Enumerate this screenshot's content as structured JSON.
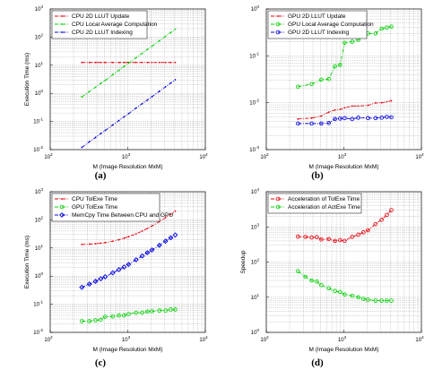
{
  "chart_data": [
    {
      "type": "line",
      "panel_label": "(a)",
      "xlabel": "M (Image Resolution MxM)",
      "ylabel": "Execution Time (ms)",
      "xscale": "log",
      "yscale": "log",
      "xlim": [
        100,
        10000
      ],
      "ylim": [
        0.01,
        1000
      ],
      "grid": true,
      "legend_position": "top-left",
      "x": [
        256,
        320,
        384,
        448,
        512,
        640,
        768,
        896,
        1024,
        1280,
        1536,
        1792,
        2048,
        2560,
        3072,
        3584,
        4096
      ],
      "series": [
        {
          "name": "CPU 2D LLUT Update",
          "color": "#e8000b",
          "marker": "point",
          "linestyle": "dash-dot",
          "values": [
            12.5,
            12.5,
            12.5,
            12.5,
            12.5,
            12.5,
            12.5,
            12.5,
            12.5,
            12.5,
            12.5,
            12.5,
            12.5,
            12.5,
            12.5,
            12.5,
            12.5
          ]
        },
        {
          "name": "CPU Local Average Computation",
          "color": "#00d000",
          "marker": "point",
          "linestyle": "dash-dot",
          "values": [
            0.75,
            1.15,
            1.65,
            2.25,
            2.9,
            4.6,
            6.6,
            9.0,
            11.8,
            18.5,
            26.6,
            36.3,
            47.5,
            74.0,
            107,
            145,
            190
          ]
        },
        {
          "name": "CPU 2D LLUT Indexing",
          "color": "#0000e0",
          "marker": "point",
          "linestyle": "dash-dot",
          "values": [
            0.012,
            0.019,
            0.027,
            0.037,
            0.048,
            0.075,
            0.108,
            0.147,
            0.19,
            0.3,
            0.43,
            0.58,
            0.76,
            1.19,
            1.71,
            2.33,
            3.05
          ]
        }
      ]
    },
    {
      "type": "line",
      "panel_label": "(b)",
      "xlabel": "M (Image Resolution MxM)",
      "ylabel": "",
      "xscale": "log",
      "yscale": "log",
      "xlim": [
        100,
        10000
      ],
      "ylim": [
        0.001,
        1
      ],
      "grid": true,
      "legend_position": "top-left",
      "x": [
        256,
        384,
        512,
        640,
        768,
        896,
        1024,
        1280,
        1536,
        2048,
        2560,
        3072,
        3584,
        4096
      ],
      "series": [
        {
          "name": "GPU 2D LLUT Update",
          "color": "#e8000b",
          "marker": "point",
          "linestyle": "dash-dot",
          "values": [
            0.0045,
            0.0047,
            0.0052,
            0.0063,
            0.007,
            0.0072,
            0.0078,
            0.0085,
            0.0085,
            0.0088,
            0.0099,
            0.01,
            0.0105,
            0.011
          ]
        },
        {
          "name": "GPU Local Average Computation",
          "color": "#00d000",
          "marker": "circle",
          "linestyle": "dash-dot",
          "values": [
            0.022,
            0.025,
            0.031,
            0.032,
            0.06,
            0.064,
            0.19,
            0.2,
            0.22,
            0.3,
            0.3,
            0.38,
            0.4,
            0.42
          ]
        },
        {
          "name": "GPU 2D LLUT Indexing",
          "color": "#0000e0",
          "marker": "circle",
          "linestyle": "dash-dot",
          "values": [
            0.0036,
            0.0036,
            0.0036,
            0.0037,
            0.0045,
            0.0046,
            0.0047,
            0.0045,
            0.0048,
            0.0047,
            0.0047,
            0.0048,
            0.005,
            0.0049
          ]
        }
      ]
    },
    {
      "type": "line",
      "panel_label": "(c)",
      "xlabel": "M (Image Resolution MxM)",
      "ylabel": "Execution Time (ms)",
      "xscale": "log",
      "yscale": "log",
      "xlim": [
        100,
        10000
      ],
      "ylim": [
        0.01,
        1000
      ],
      "grid": true,
      "legend_position": "top-left",
      "x": [
        256,
        320,
        384,
        448,
        512,
        640,
        768,
        896,
        1024,
        1280,
        1536,
        1792,
        2048,
        2560,
        3072,
        3584,
        4096
      ],
      "series": [
        {
          "name": "CPU TolExe Time",
          "color": "#e8000b",
          "marker": "point",
          "linestyle": "dash-dot",
          "values": [
            13.3,
            13.7,
            14.2,
            14.8,
            15.5,
            17.4,
            19.6,
            22.2,
            25.1,
            31.9,
            40,
            49.5,
            60.3,
            87,
            120,
            158,
            205
          ]
        },
        {
          "name": "GPU TolExe Time",
          "color": "#00d000",
          "marker": "circle",
          "linestyle": "dash-dot",
          "values": [
            0.025,
            0.025,
            0.027,
            0.028,
            0.036,
            0.037,
            0.04,
            0.04,
            0.045,
            0.05,
            0.05,
            0.055,
            0.056,
            0.06,
            0.06,
            0.065,
            0.065
          ]
        },
        {
          "name": "MemCpy Time Between CPU and GPU",
          "color": "#0000e0",
          "marker": "diamond",
          "linestyle": "dash-dot",
          "values": [
            0.4,
            0.52,
            0.65,
            0.8,
            0.95,
            1.3,
            1.7,
            2.1,
            2.6,
            3.8,
            5.2,
            6.8,
            8.5,
            12.5,
            17.5,
            23,
            29
          ]
        }
      ]
    },
    {
      "type": "line",
      "panel_label": "(d)",
      "xlabel": "M (Image Resolution MxM)",
      "ylabel": "Speedup",
      "xscale": "log",
      "yscale": "log",
      "xlim": [
        100,
        10000
      ],
      "ylim": [
        1,
        10000
      ],
      "grid": true,
      "legend_position": "top-left",
      "x": [
        256,
        320,
        384,
        448,
        512,
        640,
        768,
        896,
        1024,
        1280,
        1536,
        1792,
        2048,
        2560,
        3072,
        3584,
        4096
      ],
      "series": [
        {
          "name": "Acceleration of TolExe Time",
          "color": "#e8000b",
          "marker": "circle",
          "linestyle": "dash-dot",
          "values": [
            530,
            520,
            500,
            510,
            440,
            450,
            400,
            420,
            400,
            520,
            600,
            700,
            800,
            1200,
            1600,
            2200,
            3000
          ]
        },
        {
          "name": "Acceleration of ActExe Time",
          "color": "#00d000",
          "marker": "circle",
          "linestyle": "dash-dot",
          "values": [
            55,
            38,
            30,
            28,
            22,
            18,
            15,
            14,
            12,
            11,
            10,
            9,
            8.5,
            8,
            8,
            8,
            8
          ]
        }
      ]
    }
  ]
}
